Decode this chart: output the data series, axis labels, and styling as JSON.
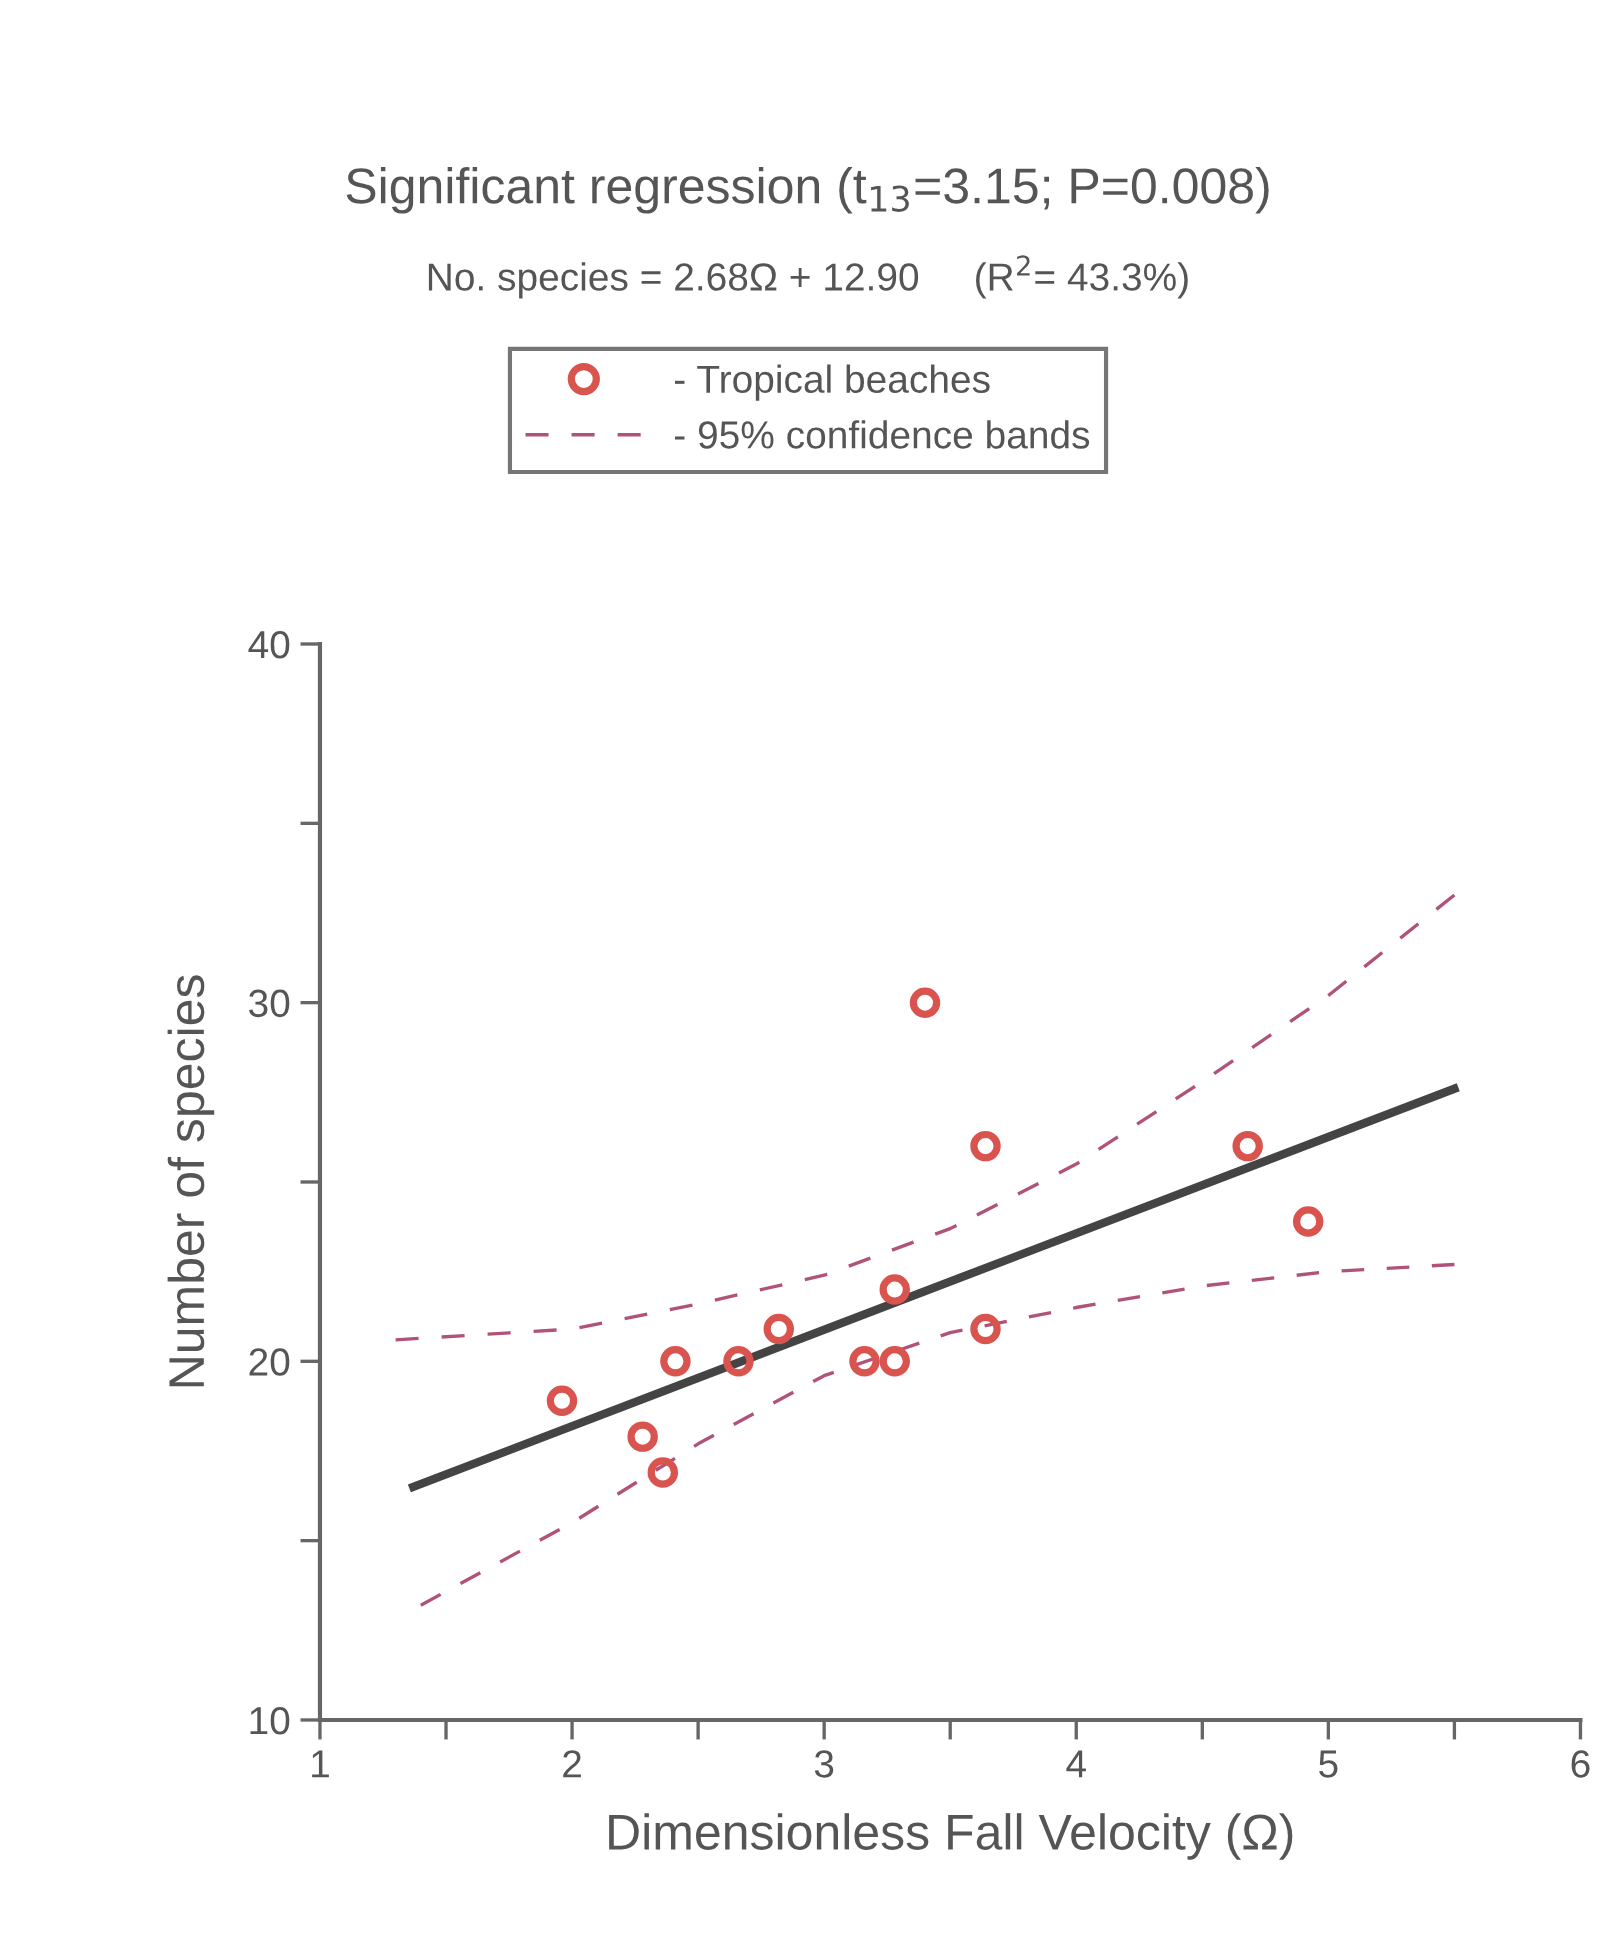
{
  "chart_data": {
    "type": "scatter",
    "title": "Significant regression (t$_{13}$=3.15; P=0.008)",
    "subtitle": "No. species = 2.68Ω + 12.90     (R$^{2}$= 43.3%)",
    "xlabel": "Dimensionless Fall Velocity (Ω)",
    "ylabel": "Number of species",
    "xlim": [
      1,
      6
    ],
    "ylim": [
      10,
      40
    ],
    "xticks": [
      1,
      {
        "value": 1.5,
        "label": null
      },
      2,
      {
        "value": 2.5,
        "label": null
      },
      3,
      {
        "value": 3.5,
        "label": null
      },
      4,
      {
        "value": 4.5,
        "label": null
      },
      5,
      {
        "value": 5.5,
        "label": null
      },
      6
    ],
    "yticks": [
      10,
      {
        "value": 15,
        "label": null
      },
      20,
      {
        "value": 25,
        "label": null
      },
      30,
      {
        "value": 35,
        "label": null
      },
      40
    ],
    "grid": false,
    "legend": "top",
    "series": [
      {
        "name": "- Tropical beaches",
        "marker": "circle",
        "color": "#d9534f",
        "x": [
          1.96,
          2.28,
          2.36,
          2.41,
          2.66,
          2.82,
          3.16,
          3.28,
          3.28,
          3.4,
          3.64,
          3.64,
          4.68,
          4.92
        ],
        "values": [
          18.9,
          17.9,
          16.9,
          20,
          20,
          20.9,
          20,
          20,
          22,
          30,
          26,
          20.9,
          26,
          23.9
        ]
      },
      {
        "type": "line",
        "color": "#444444",
        "line_style": "solid",
        "marker": "none",
        "x": [
          1.37,
          5.5
        ],
        "values": [
          16.5,
          27.6
        ]
      },
      {
        "name": "- 95% confidence bands",
        "type": "line",
        "color": "#b0527a",
        "line_style": "dashed",
        "marker": "none",
        "x": [
          1.3,
          2,
          2.5,
          3,
          3.5,
          4,
          4.5,
          5,
          5.5
        ],
        "values": [
          20.6,
          20.9,
          21.6,
          22.4,
          23.7,
          25.5,
          27.8,
          30.2,
          33
        ]
      },
      {
        "type": "line",
        "color": "#b0527a",
        "line_style": "dashed",
        "marker": "none",
        "x": [
          1.4,
          2,
          2.5,
          3,
          3.5,
          4,
          4.5,
          5,
          5.5
        ],
        "values": [
          13.2,
          15.5,
          17.7,
          19.6,
          20.8,
          21.5,
          22.1,
          22.5,
          22.7
        ]
      }
    ]
  }
}
